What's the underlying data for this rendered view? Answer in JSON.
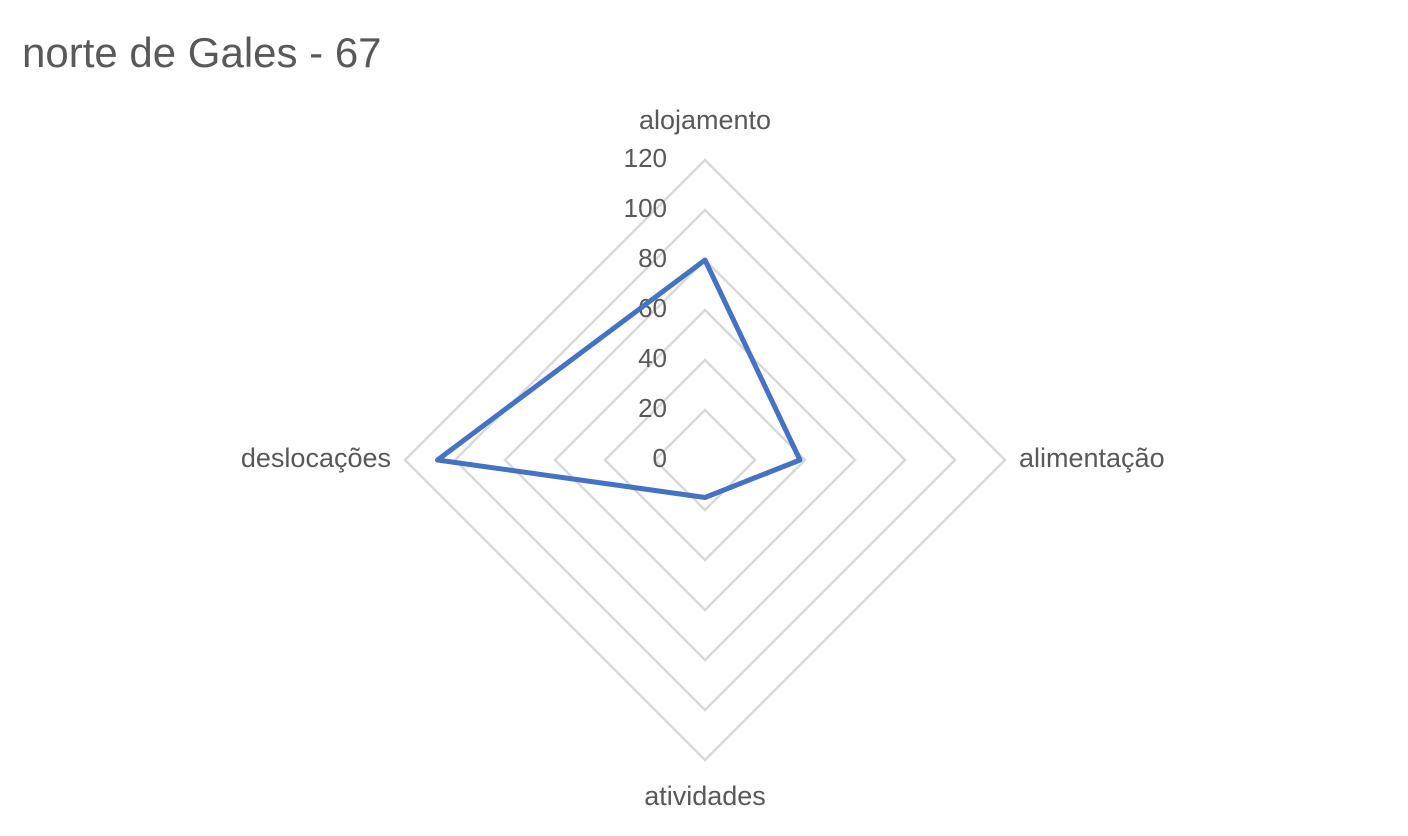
{
  "chart_data": {
    "type": "radar",
    "title": "norte de Gales - 67",
    "categories": [
      "alojamento",
      "alimentação",
      "atividades",
      "deslocações"
    ],
    "series": [
      {
        "name": null,
        "color": "#4472c4",
        "values": [
          80,
          38,
          15,
          107
        ]
      }
    ],
    "ylim": [
      0,
      120
    ],
    "yticks": [
      0,
      20,
      40,
      60,
      80,
      100,
      120
    ],
    "grid": true
  }
}
